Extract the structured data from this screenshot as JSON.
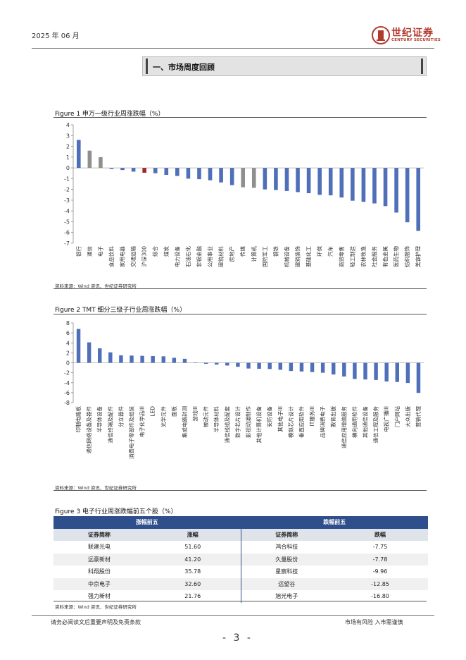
{
  "header": {
    "date": "2025 年 06 月",
    "logo_cn": "世纪证券",
    "logo_en": "CENTURY SECURITIES"
  },
  "section_title": "一、市场周度回顾",
  "figure1": {
    "title": "Figure 1  申万一级行业周涨跌幅（%）",
    "source": "资料来源：Wind 资讯、世纪证券研究所",
    "chart_data": {
      "type": "bar",
      "title": "申万一级行业周涨跌幅（%）",
      "ylabel": "%",
      "ylim": [
        -7,
        4
      ],
      "yticks": [
        4,
        3,
        2,
        1,
        0,
        -1,
        -2,
        -3,
        -4,
        -5,
        -6,
        -7
      ],
      "categories": [
        "银行",
        "通信",
        "电子",
        "食品饮料",
        "家用电器",
        "交通运输",
        "沪深300",
        "综合",
        "煤炭",
        "电力设备",
        "石油石化",
        "非银金融",
        "公用事业",
        "建筑材料",
        "房地产",
        "传媒",
        "计算机",
        "国防军工",
        "钢铁",
        "机械设备",
        "建筑装饰",
        "基础化工",
        "环保",
        "汽车",
        "商贸零售",
        "轻工制造",
        "农林牧渔",
        "社会服务",
        "有色金属",
        "医药生物",
        "纺织服饰",
        "美容护理"
      ],
      "values": [
        2.6,
        1.6,
        1.0,
        -0.1,
        -0.2,
        -0.35,
        -0.45,
        -0.5,
        -0.65,
        -0.75,
        -1.0,
        -1.05,
        -1.15,
        -1.35,
        -1.6,
        -1.8,
        -1.85,
        -2.0,
        -2.05,
        -2.15,
        -2.25,
        -2.35,
        -2.5,
        -2.55,
        -2.75,
        -3.05,
        -3.15,
        -3.3,
        -3.55,
        -4.15,
        -5.05,
        -5.85
      ],
      "colors": [
        "#4f6fb8",
        "#8f8f8f",
        "#8f8f8f",
        "#4f6fb8",
        "#4f6fb8",
        "#4f6fb8",
        "#a0282a",
        "#4f6fb8",
        "#4f6fb8",
        "#4f6fb8",
        "#4f6fb8",
        "#4f6fb8",
        "#4f6fb8",
        "#4f6fb8",
        "#4f6fb8",
        "#8f8f8f",
        "#8f8f8f",
        "#4f6fb8",
        "#4f6fb8",
        "#4f6fb8",
        "#4f6fb8",
        "#4f6fb8",
        "#4f6fb8",
        "#4f6fb8",
        "#4f6fb8",
        "#4f6fb8",
        "#4f6fb8",
        "#4f6fb8",
        "#4f6fb8",
        "#4f6fb8",
        "#4f6fb8",
        "#4f6fb8"
      ]
    }
  },
  "figure2": {
    "title": "Figure 2 TMT 细分三级子行业周涨跌幅（%）",
    "source": "资料来源：Wind 资讯、世纪证券研究所",
    "chart_data": {
      "type": "bar",
      "title": "TMT 细分三级子行业周涨跌幅（%）",
      "ylabel": "%",
      "ylim": [
        -8,
        8
      ],
      "yticks": [
        8,
        6,
        4,
        2,
        0,
        -2,
        -4,
        -6,
        -8
      ],
      "categories": [
        "印制电路板",
        "通信网络设备及器件",
        "半导体设备",
        "通信终端及配件",
        "分立器件",
        "消费电子零部件及组装",
        "电子化学品III",
        "LED",
        "光学元件",
        "面板",
        "集成电路封测",
        "游戏III",
        "被动元件",
        "半导体材料",
        "通信线缆及配套",
        "数字芯片设计",
        "影视动漫制作",
        "其他计算机设备",
        "安防设备",
        "其他电子III",
        "模拟芯片设计",
        "垂直应用软件",
        "IT服务III",
        "品牌消费电子",
        "教育出版",
        "通信应用增值服务",
        "横向通用软件",
        "其他通信设备",
        "通信工程及服务",
        "电视广播III",
        "门户网站",
        "大众出版",
        "营销代理"
      ],
      "values": [
        6.8,
        4.1,
        2.9,
        2.1,
        1.5,
        1.45,
        1.4,
        1.35,
        1.3,
        1.0,
        0.8,
        0.05,
        -0.2,
        -0.35,
        -0.55,
        -0.8,
        -1.15,
        -1.2,
        -1.25,
        -1.4,
        -1.65,
        -1.75,
        -1.85,
        -2.0,
        -2.35,
        -2.75,
        -3.25,
        -3.35,
        -3.45,
        -3.75,
        -3.85,
        -4.05,
        -6.05
      ],
      "color": "#4f6fb8"
    }
  },
  "figure3": {
    "title": "Figure 3 电子行业周涨跌幅前五个股（%）",
    "source": "资料来源：Wind 资讯、世纪证券研究所",
    "group_left": "涨幅前五",
    "group_right": "跌幅前五",
    "col_name": "证券简称",
    "col_up": "涨幅",
    "col_down": "跌幅",
    "rows": [
      {
        "up_name": "联建光电",
        "up_val": "51.60",
        "down_name": "鸿合科技",
        "down_val": "-7.75"
      },
      {
        "up_name": "远豪新材",
        "up_val": "41.20",
        "down_name": "久量股份",
        "down_val": "-7.78"
      },
      {
        "up_name": "科翔股份",
        "up_val": "35.78",
        "down_name": "星宸科技",
        "down_val": "-9.96"
      },
      {
        "up_name": "中京电子",
        "up_val": "32.60",
        "down_name": "远望谷",
        "down_val": "-12.85"
      },
      {
        "up_name": "强力新材",
        "up_val": "21.76",
        "down_name": "旭光电子",
        "down_val": "-16.80"
      }
    ]
  },
  "footer": {
    "left": "请务必阅读文后重要声明及免责条款",
    "right": "市场有风险 入市需谨慎",
    "page": "- 3 -"
  }
}
